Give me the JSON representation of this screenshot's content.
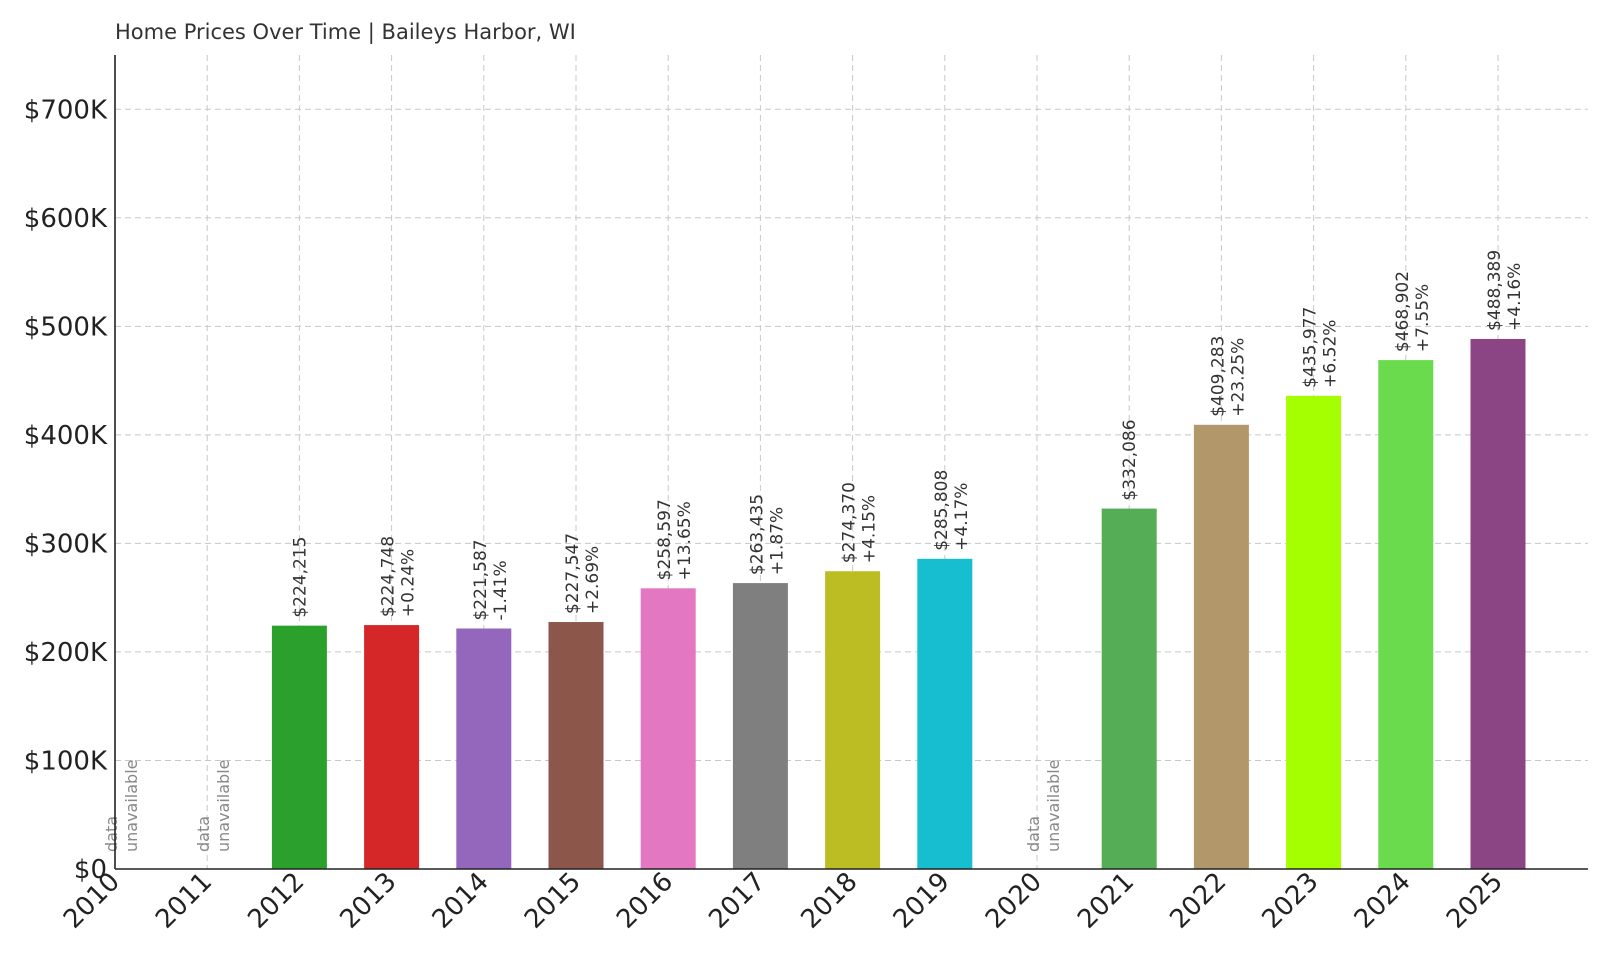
{
  "chart_data": {
    "type": "bar",
    "title": "Home Prices Over Time | Baileys Harbor, WI",
    "xlabel": "",
    "ylabel": "",
    "ylim": [
      0,
      750000
    ],
    "yticks": [
      0,
      100000,
      200000,
      300000,
      400000,
      500000,
      600000,
      700000
    ],
    "ytick_labels": [
      "$0",
      "$100K",
      "$200K",
      "$300K",
      "$400K",
      "$500K",
      "$600K",
      "$700K"
    ],
    "grid": true,
    "unavailable_text": [
      "data",
      "unavailable"
    ],
    "categories": [
      "2010",
      "2011",
      "2012",
      "2013",
      "2014",
      "2015",
      "2016",
      "2017",
      "2018",
      "2019",
      "2020",
      "2021",
      "2022",
      "2023",
      "2024",
      "2025"
    ],
    "values": [
      null,
      null,
      224215,
      224748,
      221587,
      227547,
      258597,
      263435,
      274370,
      285808,
      null,
      332086,
      409283,
      435977,
      468902,
      488389
    ],
    "value_labels": [
      "",
      "",
      "$224,215",
      "$224,748",
      "$221,587",
      "$227,547",
      "$258,597",
      "$263,435",
      "$274,370",
      "$285,808",
      "",
      "$332,086",
      "$409,283",
      "$435,977",
      "$468,902",
      "$488,389"
    ],
    "change_labels": [
      "",
      "",
      "",
      "+0.24%",
      "-1.41%",
      "+2.69%",
      "+13.65%",
      "+1.87%",
      "+4.15%",
      "+4.17%",
      "",
      "",
      "+23.25%",
      "+6.52%",
      "+7.55%",
      "+4.16%"
    ],
    "colors": [
      "#1f77b4",
      "#ff7f0e",
      "#2ca02c",
      "#d62728",
      "#9467bd",
      "#8c564b",
      "#e377c2",
      "#7f7f7f",
      "#bcbd22",
      "#17becf",
      "#1f77b4",
      "#55ae55",
      "#b2976b",
      "#a6ff00",
      "#6bdb4e",
      "#8b4585"
    ]
  }
}
